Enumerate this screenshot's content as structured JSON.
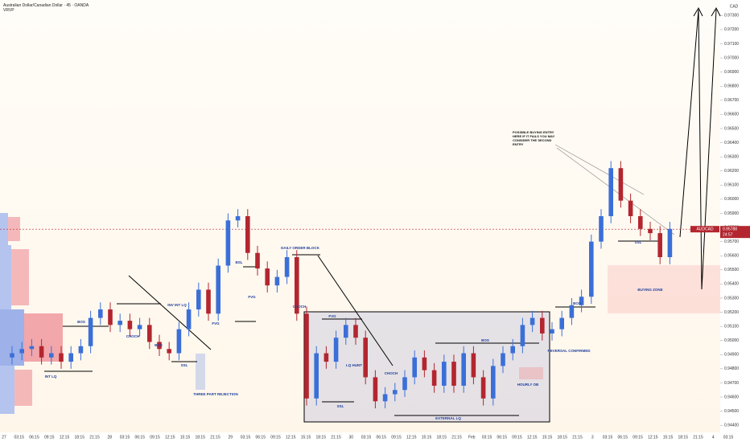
{
  "chart_data": {
    "type": "candlestick",
    "title": "Australian Dollar/Canadian Dollar · 45 · OANDA",
    "indicator": "VRVP",
    "currency": "CAD",
    "up_color": "#3b6fd8",
    "down_color": "#b3262f",
    "open": [
      0.9488,
      0.9491,
      0.9494,
      0.9496,
      0.9488,
      0.9491,
      0.9485,
      0.9491,
      0.9496,
      0.9516,
      0.9522,
      0.9511,
      0.9514,
      0.9508,
      0.9511,
      0.9499,
      0.9494,
      0.9491,
      0.9508,
      0.9522,
      0.9536,
      0.9519,
      0.9553,
      0.9585,
      0.9588,
      0.9562,
      0.9551,
      0.9539,
      0.9545,
      0.9559,
      0.9519,
      0.9459,
      0.9491,
      0.9485,
      0.9502,
      0.9511,
      0.9502,
      0.9474,
      0.9457,
      0.9462,
      0.9465,
      0.9474,
      0.9488,
      0.9479,
      0.9468,
      0.9485,
      0.9468,
      0.9491,
      0.9474,
      0.9459,
      0.9482,
      0.9491,
      0.9496,
      0.9511,
      0.9516,
      0.9505,
      0.9508,
      0.9516,
      0.9525,
      0.9531,
      0.957,
      0.9588,
      0.9622,
      0.9599,
      0.9588,
      0.9579,
      0.9576,
      0.9559
    ],
    "high": [
      0.9496,
      0.9499,
      0.9501,
      0.9501,
      0.9496,
      0.9496,
      0.9496,
      0.9501,
      0.9521,
      0.9527,
      0.9527,
      0.9519,
      0.9519,
      0.9516,
      0.9516,
      0.9504,
      0.9499,
      0.9513,
      0.9527,
      0.9541,
      0.9541,
      0.9558,
      0.959,
      0.9593,
      0.9593,
      0.9567,
      0.9556,
      0.955,
      0.9564,
      0.9564,
      0.9524,
      0.9496,
      0.9496,
      0.9507,
      0.9516,
      0.9516,
      0.9507,
      0.9479,
      0.9467,
      0.947,
      0.9479,
      0.9493,
      0.9493,
      0.9484,
      0.949,
      0.949,
      0.9496,
      0.9496,
      0.9479,
      0.9487,
      0.9496,
      0.9501,
      0.9516,
      0.9521,
      0.9521,
      0.9513,
      0.9521,
      0.953,
      0.9536,
      0.9575,
      0.9593,
      0.9627,
      0.9627,
      0.9604,
      0.9593,
      0.9584,
      0.9581,
      0.9584
    ],
    "low": [
      0.9483,
      0.9486,
      0.9489,
      0.9483,
      0.9483,
      0.948,
      0.948,
      0.9486,
      0.9491,
      0.9511,
      0.9506,
      0.9506,
      0.9503,
      0.9503,
      0.9494,
      0.9489,
      0.9486,
      0.9486,
      0.9503,
      0.9517,
      0.9514,
      0.9514,
      0.9548,
      0.958,
      0.9557,
      0.9546,
      0.9534,
      0.9534,
      0.954,
      0.9514,
      0.9454,
      0.9454,
      0.948,
      0.948,
      0.9497,
      0.9497,
      0.9469,
      0.9452,
      0.9452,
      0.9457,
      0.946,
      0.9469,
      0.9474,
      0.9463,
      0.9463,
      0.9463,
      0.9463,
      0.9469,
      0.9454,
      0.9454,
      0.9477,
      0.9486,
      0.9491,
      0.9506,
      0.95,
      0.95,
      0.9503,
      0.9511,
      0.952,
      0.9526,
      0.9565,
      0.9583,
      0.9594,
      0.9583,
      0.9574,
      0.9571,
      0.9554,
      0.9554
    ],
    "close": [
      0.9491,
      0.9494,
      0.9496,
      0.9488,
      0.9491,
      0.9485,
      0.9491,
      0.9496,
      0.9516,
      0.9522,
      0.9511,
      0.9514,
      0.9508,
      0.9511,
      0.9499,
      0.9494,
      0.9491,
      0.9508,
      0.9522,
      0.9536,
      0.9519,
      0.9553,
      0.9585,
      0.9588,
      0.9562,
      0.9551,
      0.9539,
      0.9545,
      0.9559,
      0.9519,
      0.9459,
      0.9491,
      0.9485,
      0.9502,
      0.9511,
      0.9502,
      0.9474,
      0.9457,
      0.9462,
      0.9465,
      0.9474,
      0.9488,
      0.9479,
      0.9468,
      0.9485,
      0.9468,
      0.9491,
      0.9474,
      0.9459,
      0.9482,
      0.9491,
      0.9496,
      0.9511,
      0.9516,
      0.9505,
      0.9508,
      0.9516,
      0.9525,
      0.9531,
      0.957,
      0.9588,
      0.9622,
      0.9599,
      0.9588,
      0.9579,
      0.9576,
      0.9559,
      0.9579
    ],
    "ylim": [
      0.9435,
      0.9741
    ],
    "yticks": [
      {
        "value": 0.944,
        "label": "0.94400"
      },
      {
        "value": 0.945,
        "label": "0.94500"
      },
      {
        "value": 0.946,
        "label": "0.94600"
      },
      {
        "value": 0.947,
        "label": "0.94700"
      },
      {
        "value": 0.948,
        "label": "0.94800"
      },
      {
        "value": 0.949,
        "label": "0.94900"
      },
      {
        "value": 0.95,
        "label": "0.95000"
      },
      {
        "value": 0.951,
        "label": "0.95100"
      },
      {
        "value": 0.952,
        "label": "0.95200"
      },
      {
        "value": 0.953,
        "label": "0.95300"
      },
      {
        "value": 0.954,
        "label": "0.95400"
      },
      {
        "value": 0.955,
        "label": "0.95500"
      },
      {
        "value": 0.956,
        "label": "0.95600"
      },
      {
        "value": 0.957,
        "label": "0.95700"
      },
      {
        "value": 0.958,
        "label": "0.95800"
      },
      {
        "value": 0.959,
        "label": "0.95900"
      },
      {
        "value": 0.96,
        "label": "0.96000"
      },
      {
        "value": 0.961,
        "label": "0.96100"
      },
      {
        "value": 0.962,
        "label": "0.96200"
      },
      {
        "value": 0.963,
        "label": "0.96300"
      },
      {
        "value": 0.964,
        "label": "0.96400"
      },
      {
        "value": 0.965,
        "label": "0.96500"
      },
      {
        "value": 0.966,
        "label": "0.96600"
      },
      {
        "value": 0.967,
        "label": "0.96700"
      },
      {
        "value": 0.968,
        "label": "0.96800"
      },
      {
        "value": 0.969,
        "label": "0.96900"
      },
      {
        "value": 0.97,
        "label": "0.97000"
      },
      {
        "value": 0.971,
        "label": "0.97100"
      },
      {
        "value": 0.972,
        "label": "0.97200"
      },
      {
        "value": 0.973,
        "label": "0.97300"
      }
    ],
    "xtick_labels": [
      "27",
      "03:15",
      "06:15",
      "09:15",
      "12:15",
      "18:15",
      "21:15",
      "28",
      "03:15",
      "06:15",
      "09:15",
      "12:15",
      "15:15",
      "18:15",
      "21:15",
      "29",
      "03:15",
      "06:15",
      "09:15",
      "12:15",
      "15:15",
      "18:15",
      "21:15",
      "30",
      "03:15",
      "06:15",
      "09:15",
      "12:15",
      "15:15",
      "18:15",
      "21:15",
      "Feb",
      "03:15",
      "06:15",
      "09:15",
      "12:15",
      "15:15",
      "18:15",
      "21:15",
      "3",
      "03:15",
      "06:15",
      "09:15",
      "12:15",
      "15:15",
      "18:15",
      "21:15",
      "4",
      "03:15"
    ],
    "annotations": [
      "BOS",
      "CHOCH",
      "BOS",
      "INV INT LQ",
      "SSL",
      "THREE PART REJECTION",
      "INT LQ",
      "FVG",
      "BSL",
      "FVG",
      "DAILY ORDER BLOCK",
      "CHOCH",
      "FVG",
      "LQ HUNT",
      "CHOCH",
      "SSL",
      "EXTERNAL LQ",
      "BOS",
      "HOURLY OB",
      "REVERSAL CONFIRMED",
      "BOS",
      "SSL",
      "BUYING ZONE"
    ],
    "note": "POSSIBLE BUYING ENTRY HERE IF IT FAILS YOU MAY CONSIDER THE SECOND ENTRY",
    "last_price": {
      "symbol": "AUDCAD",
      "value": 0.95788,
      "countdown": "24:57"
    }
  }
}
